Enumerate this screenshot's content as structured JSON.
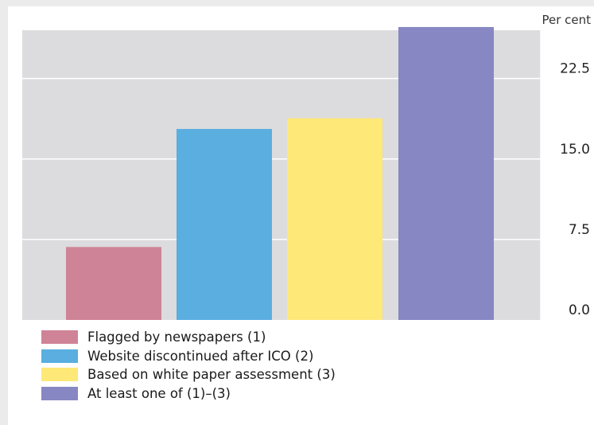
{
  "chart_data": {
    "type": "bar",
    "title": "",
    "xlabel": "",
    "ylabel": "Per cent",
    "ylim": [
      0,
      27
    ],
    "yticks": [
      "0.0",
      "7.5",
      "15.0",
      "22.5"
    ],
    "grid": true,
    "legend_position": "bottom-left",
    "categories": [
      "Flagged by newspapers (1)",
      "Website discontinued after ICO (2)",
      "Based on white paper assessment (3)",
      "At least one of (1)–(3)"
    ],
    "values": [
      6.8,
      17.8,
      18.8,
      27.3
    ],
    "colors": [
      "#cf8396",
      "#5aaee0",
      "#fde878",
      "#8687c3"
    ],
    "background": "#dcdbde",
    "gridline_color": "#ffffff"
  }
}
